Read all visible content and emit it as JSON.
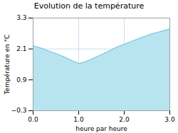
{
  "chart_data": {
    "type": "area",
    "title": "Evolution de la température",
    "x_label": "heure par heure",
    "y_label": "Température en °C",
    "x": [
      0,
      0.15,
      0.3,
      0.5,
      0.7,
      0.85,
      1.0,
      1.15,
      1.3,
      1.5,
      1.7,
      1.85,
      2.0,
      2.2,
      2.4,
      2.6,
      2.8,
      3.0
    ],
    "series": [
      {
        "type": "area",
        "color": "#b8e4f0",
        "values": [
          2.22,
          2.15,
          2.05,
          1.92,
          1.78,
          1.65,
          1.53,
          1.6,
          1.72,
          1.88,
          2.05,
          2.18,
          2.28,
          2.42,
          2.56,
          2.68,
          2.78,
          2.88
        ]
      },
      {
        "type": "line",
        "color": "#5bb8d4",
        "line_style": "dotted",
        "values": [
          2.22,
          2.15,
          2.05,
          1.92,
          1.78,
          1.65,
          1.53,
          1.6,
          1.72,
          1.88,
          2.05,
          2.18,
          2.28,
          2.42,
          2.56,
          2.68,
          2.78,
          2.88
        ]
      }
    ],
    "xlim": [
      0,
      3
    ],
    "xticks": [
      0,
      1,
      2,
      3
    ],
    "ylim": [
      -0.3,
      3.3
    ],
    "yticks": [
      -0.3,
      0.9,
      2.1,
      3.3
    ],
    "grid": true
  }
}
